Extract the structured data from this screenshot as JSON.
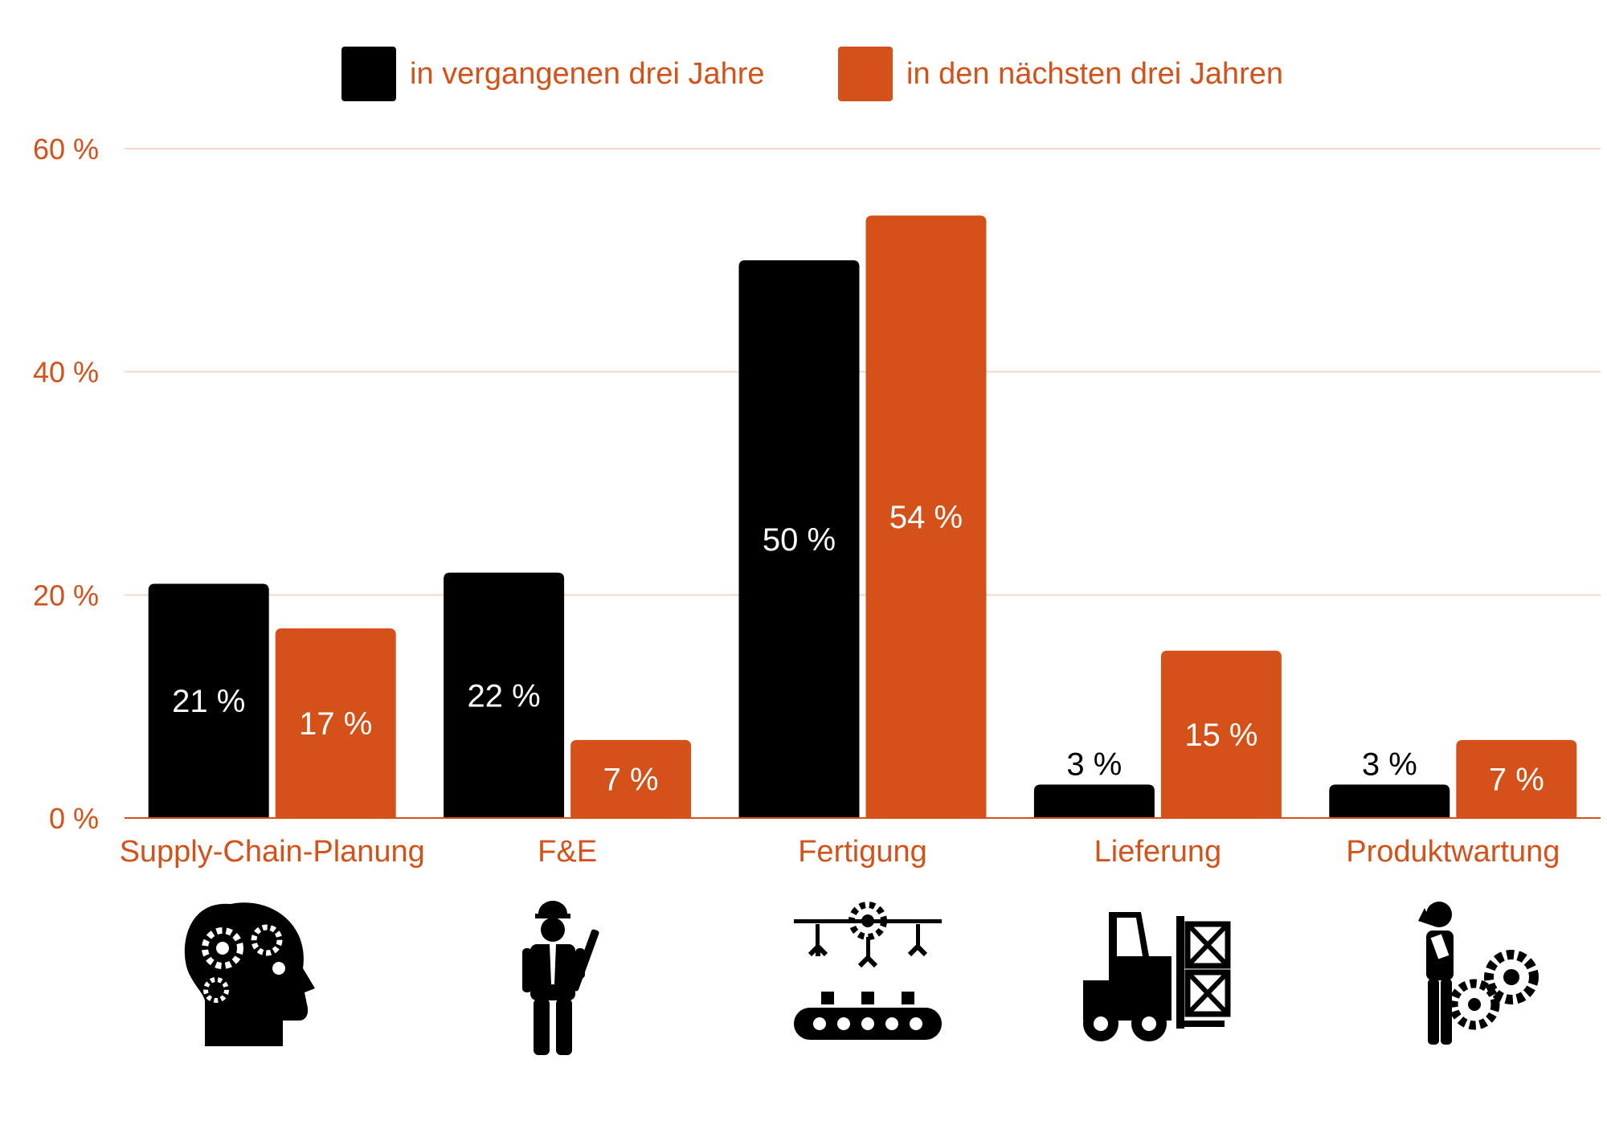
{
  "chart_data": {
    "type": "bar",
    "categories": [
      "Supply-Chain-Planung",
      "F&E",
      "Fertigung",
      "Lieferung",
      "Produktwartung"
    ],
    "series": [
      {
        "name": "in vergangenen drei Jahre",
        "values": [
          21,
          22,
          50,
          3,
          3
        ],
        "labels": [
          "21 %",
          "22 %",
          "50 %",
          "3 %",
          "3 %"
        ],
        "color": "#000000"
      },
      {
        "name": "in den nächsten drei Jahren",
        "values": [
          17,
          7,
          54,
          15,
          7
        ],
        "labels": [
          "17 %",
          "7 %",
          "54 %",
          "15 %",
          "7 %"
        ],
        "color": "#d4521a"
      }
    ],
    "yticks": [
      0,
      20,
      40,
      60
    ],
    "ytick_labels": [
      "0 %",
      "20 %",
      "40 %",
      "60 %"
    ],
    "ylim": [
      0,
      60
    ],
    "grid": true,
    "legend_position": "top",
    "icons": [
      "brain-gears-icon",
      "engineer-icon",
      "assembly-line-icon",
      "forklift-icon",
      "maintenance-worker-icon"
    ],
    "accent_color": "#d4521a",
    "grid_color": "#f3d9c9"
  }
}
